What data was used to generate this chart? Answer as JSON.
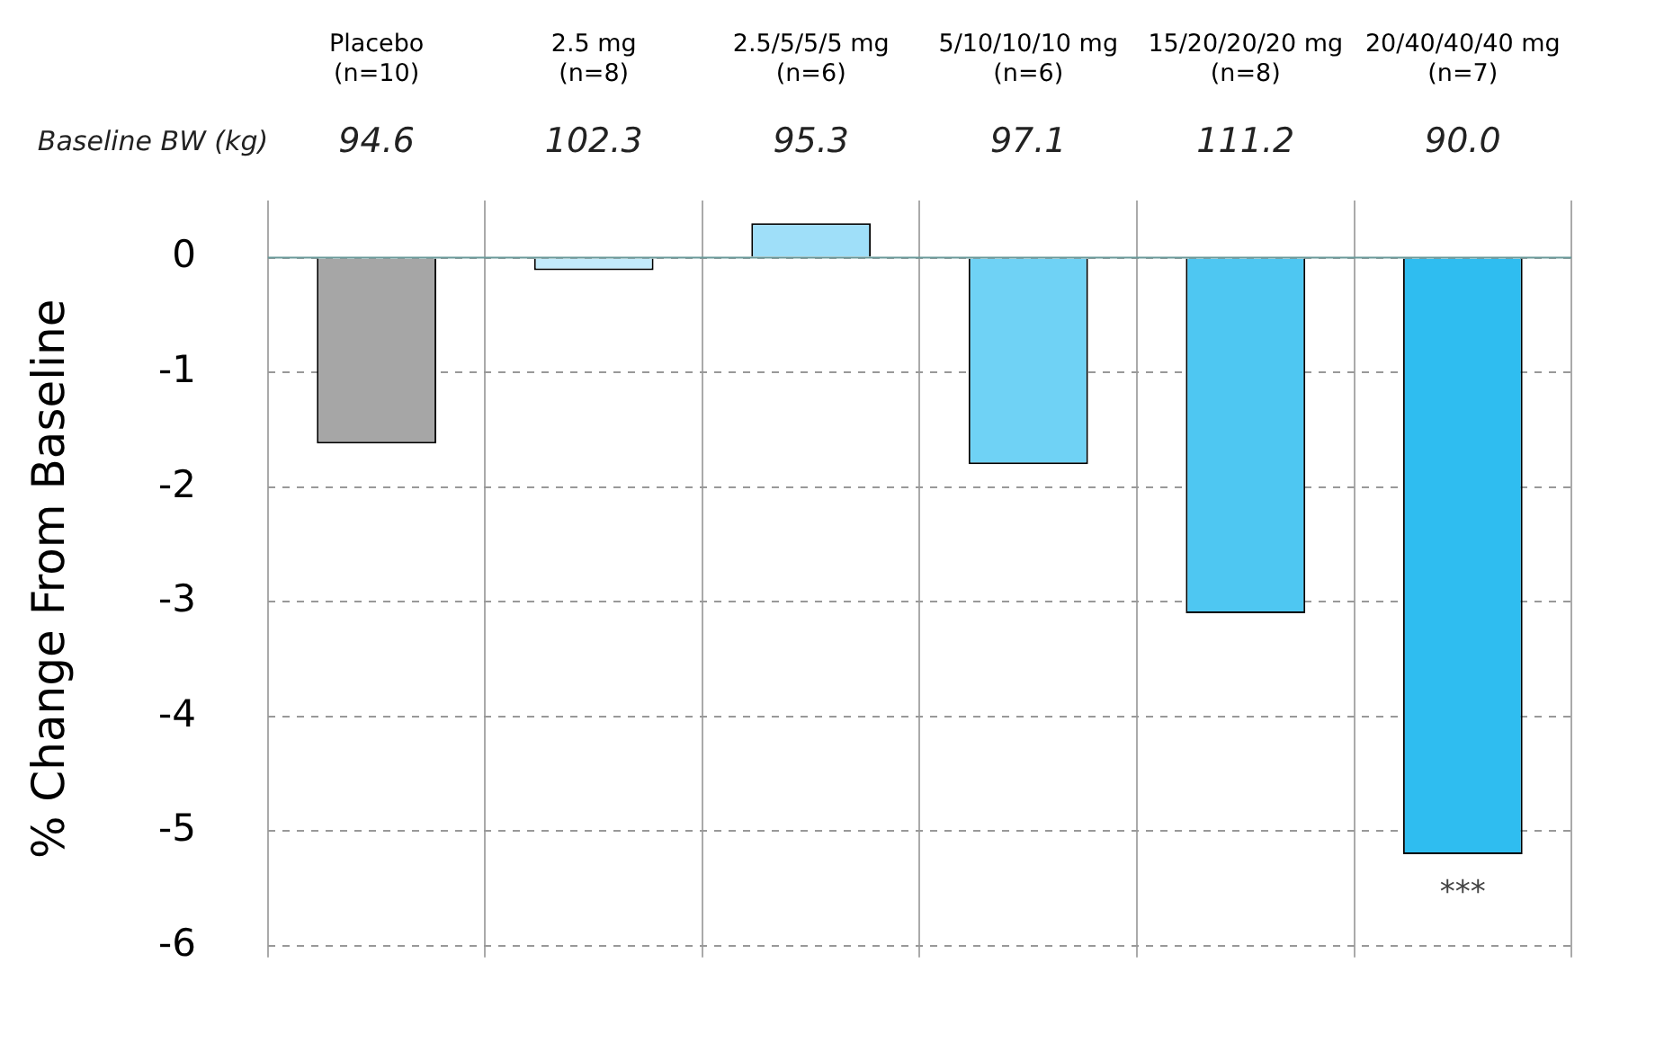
{
  "chart_data": {
    "type": "bar",
    "ylabel": "% Change From Baseline",
    "categories": [
      "Placebo\n(n=10)",
      "2.5 mg\n(n=8)",
      "2.5/5/5/5 mg\n(n=6)",
      "5/10/10/10 mg\n(n=6)",
      "15/20/20/20 mg\n(n=8)",
      "20/40/40/40 mg\n(n=7)"
    ],
    "values": [
      -1.62,
      -0.11,
      0.3,
      -1.8,
      -3.1,
      -5.2
    ],
    "colors": [
      "#a6a6a6",
      "#c3ebfb",
      "#9fdff9",
      "#6fd2f5",
      "#4ec7f2",
      "#2fbdf0"
    ],
    "ref_lines": [
      {
        "axis": "y",
        "value": 0,
        "color": "#6a9a9a"
      }
    ],
    "ylim": [
      -6.1,
      0.5
    ],
    "yticks": [
      0,
      -1,
      -2,
      -3,
      -4,
      -5,
      -6
    ],
    "grid": true,
    "legend": false,
    "annotations": [
      "Baseline BW (kg)",
      "94.6",
      "102.3",
      "95.3",
      "97.1",
      "111.2",
      "90.0",
      {
        "text": "***",
        "x": "20/40/40/40 mg\n(n=7)",
        "y": -5.2
      }
    ]
  }
}
